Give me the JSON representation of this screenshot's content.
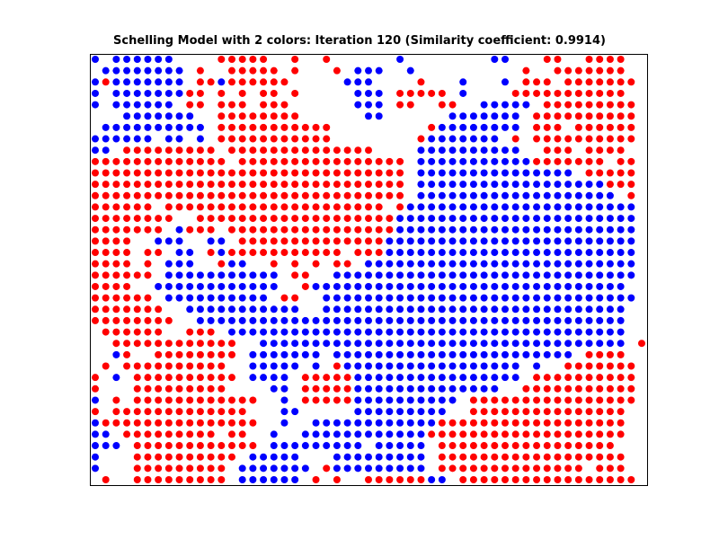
{
  "chart_data": {
    "type": "scatter",
    "title": "Schelling Model with 2 colors: Iteration 120 (Similarity coefficient: 0.9914)",
    "xlabel": "",
    "ylabel": "",
    "xlim": [
      0,
      50
    ],
    "ylim": [
      0,
      50
    ],
    "axis_ticks": false,
    "grid": false,
    "series": [
      {
        "name": "blue agents",
        "color": "#0000ff"
      },
      {
        "name": "red agents",
        "color": "#ff0000"
      }
    ],
    "grid_rows": [
      "B.BBBBBB....RRRRR..R..R......B........BB...RR..RRRR",
      ".BBBBBBBB.R..RRRRR.R...R.BBB..B..........R..RRRRRRR",
      "BRBBBBBBB.RRBRRRRRR.....BBB....R...B...B.RRR.RRRRRRR",
      "B.BBBBBBBRR.R.R.RR.R.....BBB.RRRRR.B....RRRRRRRRRRR",
      "B.BBBBBB.RR.RRR.RRR......BBB.RR..RR..BBBBB.RRRRRRRRR",
      "...BBBBBBB..RRRRRRRR......BB......BBBBBBB.RRRRRRRRRR",
      ".BBBBBBBBBB.RRRRRRRRRRR.........RBBBBBBBB.RRR.RRRRRR",
      "BBBBBB.BB.B.RRRRRRRRRRR........RBBBBBBB.R.RRRRRRRRRR",
      "BB.RRRRRRRRR.RRRRRRRRRRRRRR....BBBBBBBBBB..RRR.RRRR",
      "RRRRRRRRRRRRR.RRRRRRRRRRRRRRRR.BBBBBBBBBBBRRRRRRR.RR",
      "RRRRRRRRRRRRRRRRRRRRRRRRRRRRRR.BBBBBBBBBBBBBBB.RRRRR",
      "RRRRRRRRRRRRRRRRRRRRRRRRRRRRRR.BBBBBBBBBBBBBBBBBBRRR",
      "RRRRRRRRRRRRRRRRRRRRRRRRRRRRRR.BBBBBBBBBBBBBBBBBBB.R",
      "RRRRRR.RRRRRRRRRRRRRRRRRRRRR.RBBBBBBBBBBBBBBBBBBBBBB",
      "RRRRRRRR..RRRRRRRRRRRRRRRRRRRBBBBBBBBBBBBBBBBBBBBBBB",
      "RRRRRRR.BRRR.RRRRRRRRRRRRRRRRBBBBBBBBBBBBBBBBBBBBBBB",
      "RRRR..BBB..BB.RRRRRRRRRRRRRRBBBBBBBBBBBBBBBBBBBBBBBB",
      "RRRR.RR.BB.RBRRRRRRRRRRR.RRRBBBBBBBBBBBBBBBBBBBBBBBB",
      "RRRR.R.BBB..RBB..R.R.R.RR.BBBBBBBBBBBBBBBBBBBBBBBBBB",
      "RRRRRR.BBBBBBBBBBB.RR..BBBBBBBBBBBBBBBBBBBBBBBBBBBBB",
      "RRRR..BBBBBBBBBBBB..RBBBBBBBBBBBBBBBBBBBBBBBBBBBBBB",
      "RRRRRR.BBBBBBBBBB.RR..BBBBBBBBBBBBBBBBBBBBBBBBBBBBBB",
      "RRRRRRR..BBBBBBBBBBB..BBBBBBBBBBBBBBBBBBBBBBBBBBBBB.",
      "RRRRRRRR..BBBBBBBBBBBBBBBBBBBBBBBBBBBBBBBBBBBBBBBBB.",
      ".RRRRRR..RRR.BBBBBBBBBBBBBBBBBBBBBBBBBBBBBBBBBBBBBB.",
      "..RRRRRRRRRRRR..BBBBBBBBBBBBBBBBBBBBBBBBBBBBBBBBBBB.R",
      "..BR..RRRRRRRR.BBBBBBB.BBBBBBBBBBBBBBBBBBBBBBB.RRRR.",
      ".R.RRRRRRRRRR..BBBBB.B.RBBBBBBBBBBBBBBBBB.B..RRRRRRR",
      "R.B.RRRRRRRRRR.BBBB.RRRRRBBBBBBBBBBBBBBBB.RRRRRRRRRR",
      "R...RRRRRRRRR....BB.RRRRRBBBBBBBBBBBBBB..RRRRRRRRRRR",
      "B.R.RRRRRRRRRRRR..B.RRRRRBBBBBBBBBB.RRRRRRRRRRRRRRRR",
      "R.RRRRRRRRRRRRR...BB.....BBBBBBBBB..RRRRRRRRRRRRRRR",
      "BRRRRRRRRRRRRRRR..B..BBBBBBBBBBBBRRRRRRRRRRRRRRRRRR",
      "BB.RRRRRRRRR.RR..B..BBBBBBBBBBBBRRRRRRRRRRRRRRRRRRR",
      "BBB.RRRRRRRRRRRR.BBBBBBBBB.BBBBB.RRRRRRRRRRRRRRRRR",
      "B...RRRRRRRRRR.BBBBB...BBBBBBBBB.RRRRRRRRRRRRRRRRRR",
      "B...RRRRRRRRR.BBBBBBB.RBBBBBBBBB.RRRRRRRRRRRRRR.RRR",
      ".R..RRRRRRRRR.BBBBBB.R.R..RRRRRRBB.RRRRRRRRRRRRRRRRR"
    ]
  }
}
